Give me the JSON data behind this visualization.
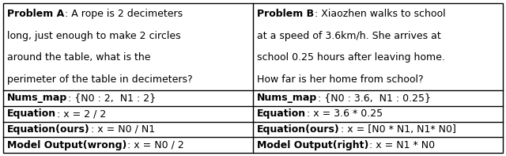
{
  "left_lines": [
    {
      "bold": "Problem A",
      "normal": ": A rope is 2 decimeters"
    },
    {
      "bold": "",
      "normal": "long, just enough to make 2 circles"
    },
    {
      "bold": "",
      "normal": "around the table, what is the"
    },
    {
      "bold": "",
      "normal": "perimeter of the table in decimeters?"
    }
  ],
  "left_rows": [
    {
      "bold": "Nums_map",
      "normal": ": {N0 : 2,  N1 : 2}"
    },
    {
      "bold": "Equation",
      "normal": ": x = 2 / 2"
    },
    {
      "bold": "Equation(ours)",
      "normal": ": x = N0 / N1"
    },
    {
      "bold": "Model Output(wrong)",
      "normal": ": x = N0 / 2"
    }
  ],
  "right_lines": [
    {
      "bold": "Problem B",
      "normal": ": Xiaozhen walks to school"
    },
    {
      "bold": "",
      "normal": "at a speed of 3.6km/h. She arrives at"
    },
    {
      "bold": "",
      "normal": "school 0.25 hours after leaving home."
    },
    {
      "bold": "",
      "normal": "How far is her home from school?"
    }
  ],
  "right_rows": [
    {
      "bold": "Nums_map",
      "normal": ": {N0 : 3.6,  N1 : 0.25}"
    },
    {
      "bold": "Equation",
      "normal": ": x = 3.6 * 0.25"
    },
    {
      "bold": "Equation(ours)",
      "normal": ": x = [N0 * N1, N1* N0]"
    },
    {
      "bold": "Model Output(right)",
      "normal": ": x = N1 * N0"
    }
  ],
  "bg_color": "#ffffff",
  "border_color": "#000000",
  "text_color": "#000000",
  "fontsize": 9.0
}
